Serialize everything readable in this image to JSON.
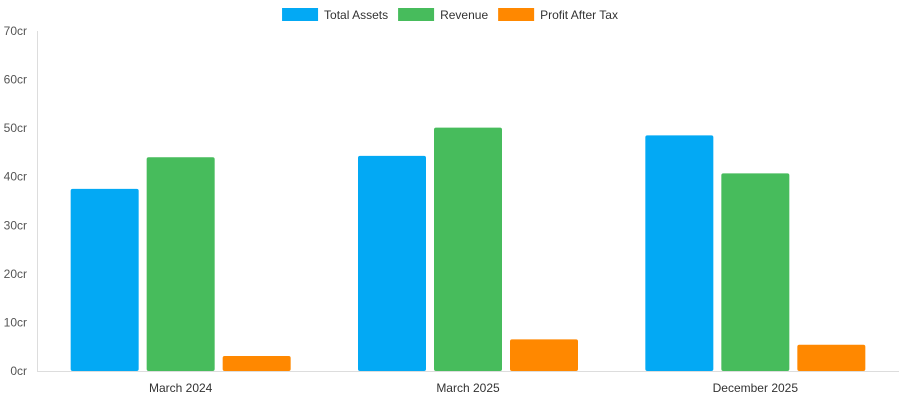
{
  "chart_data": {
    "type": "bar",
    "categories": [
      "March 2024",
      "March 2025",
      "December 2025"
    ],
    "series": [
      {
        "name": "Total Assets",
        "values": [
          37.5,
          44.3,
          48.5
        ],
        "color": "#03A9F4"
      },
      {
        "name": "Revenue",
        "values": [
          44.0,
          50.1,
          40.7
        ],
        "color": "#47BC5C"
      },
      {
        "name": "Profit After Tax",
        "values": [
          3.1,
          6.5,
          5.4
        ],
        "color": "#FF8800"
      }
    ],
    "ylim": [
      0,
      70
    ],
    "yticks": [
      0,
      10,
      20,
      30,
      40,
      50,
      60,
      70
    ],
    "ytick_labels": [
      "0cr",
      "10cr",
      "20cr",
      "30cr",
      "40cr",
      "50cr",
      "60cr",
      "70cr"
    ],
    "legend_position": "top-center",
    "grid": false
  }
}
